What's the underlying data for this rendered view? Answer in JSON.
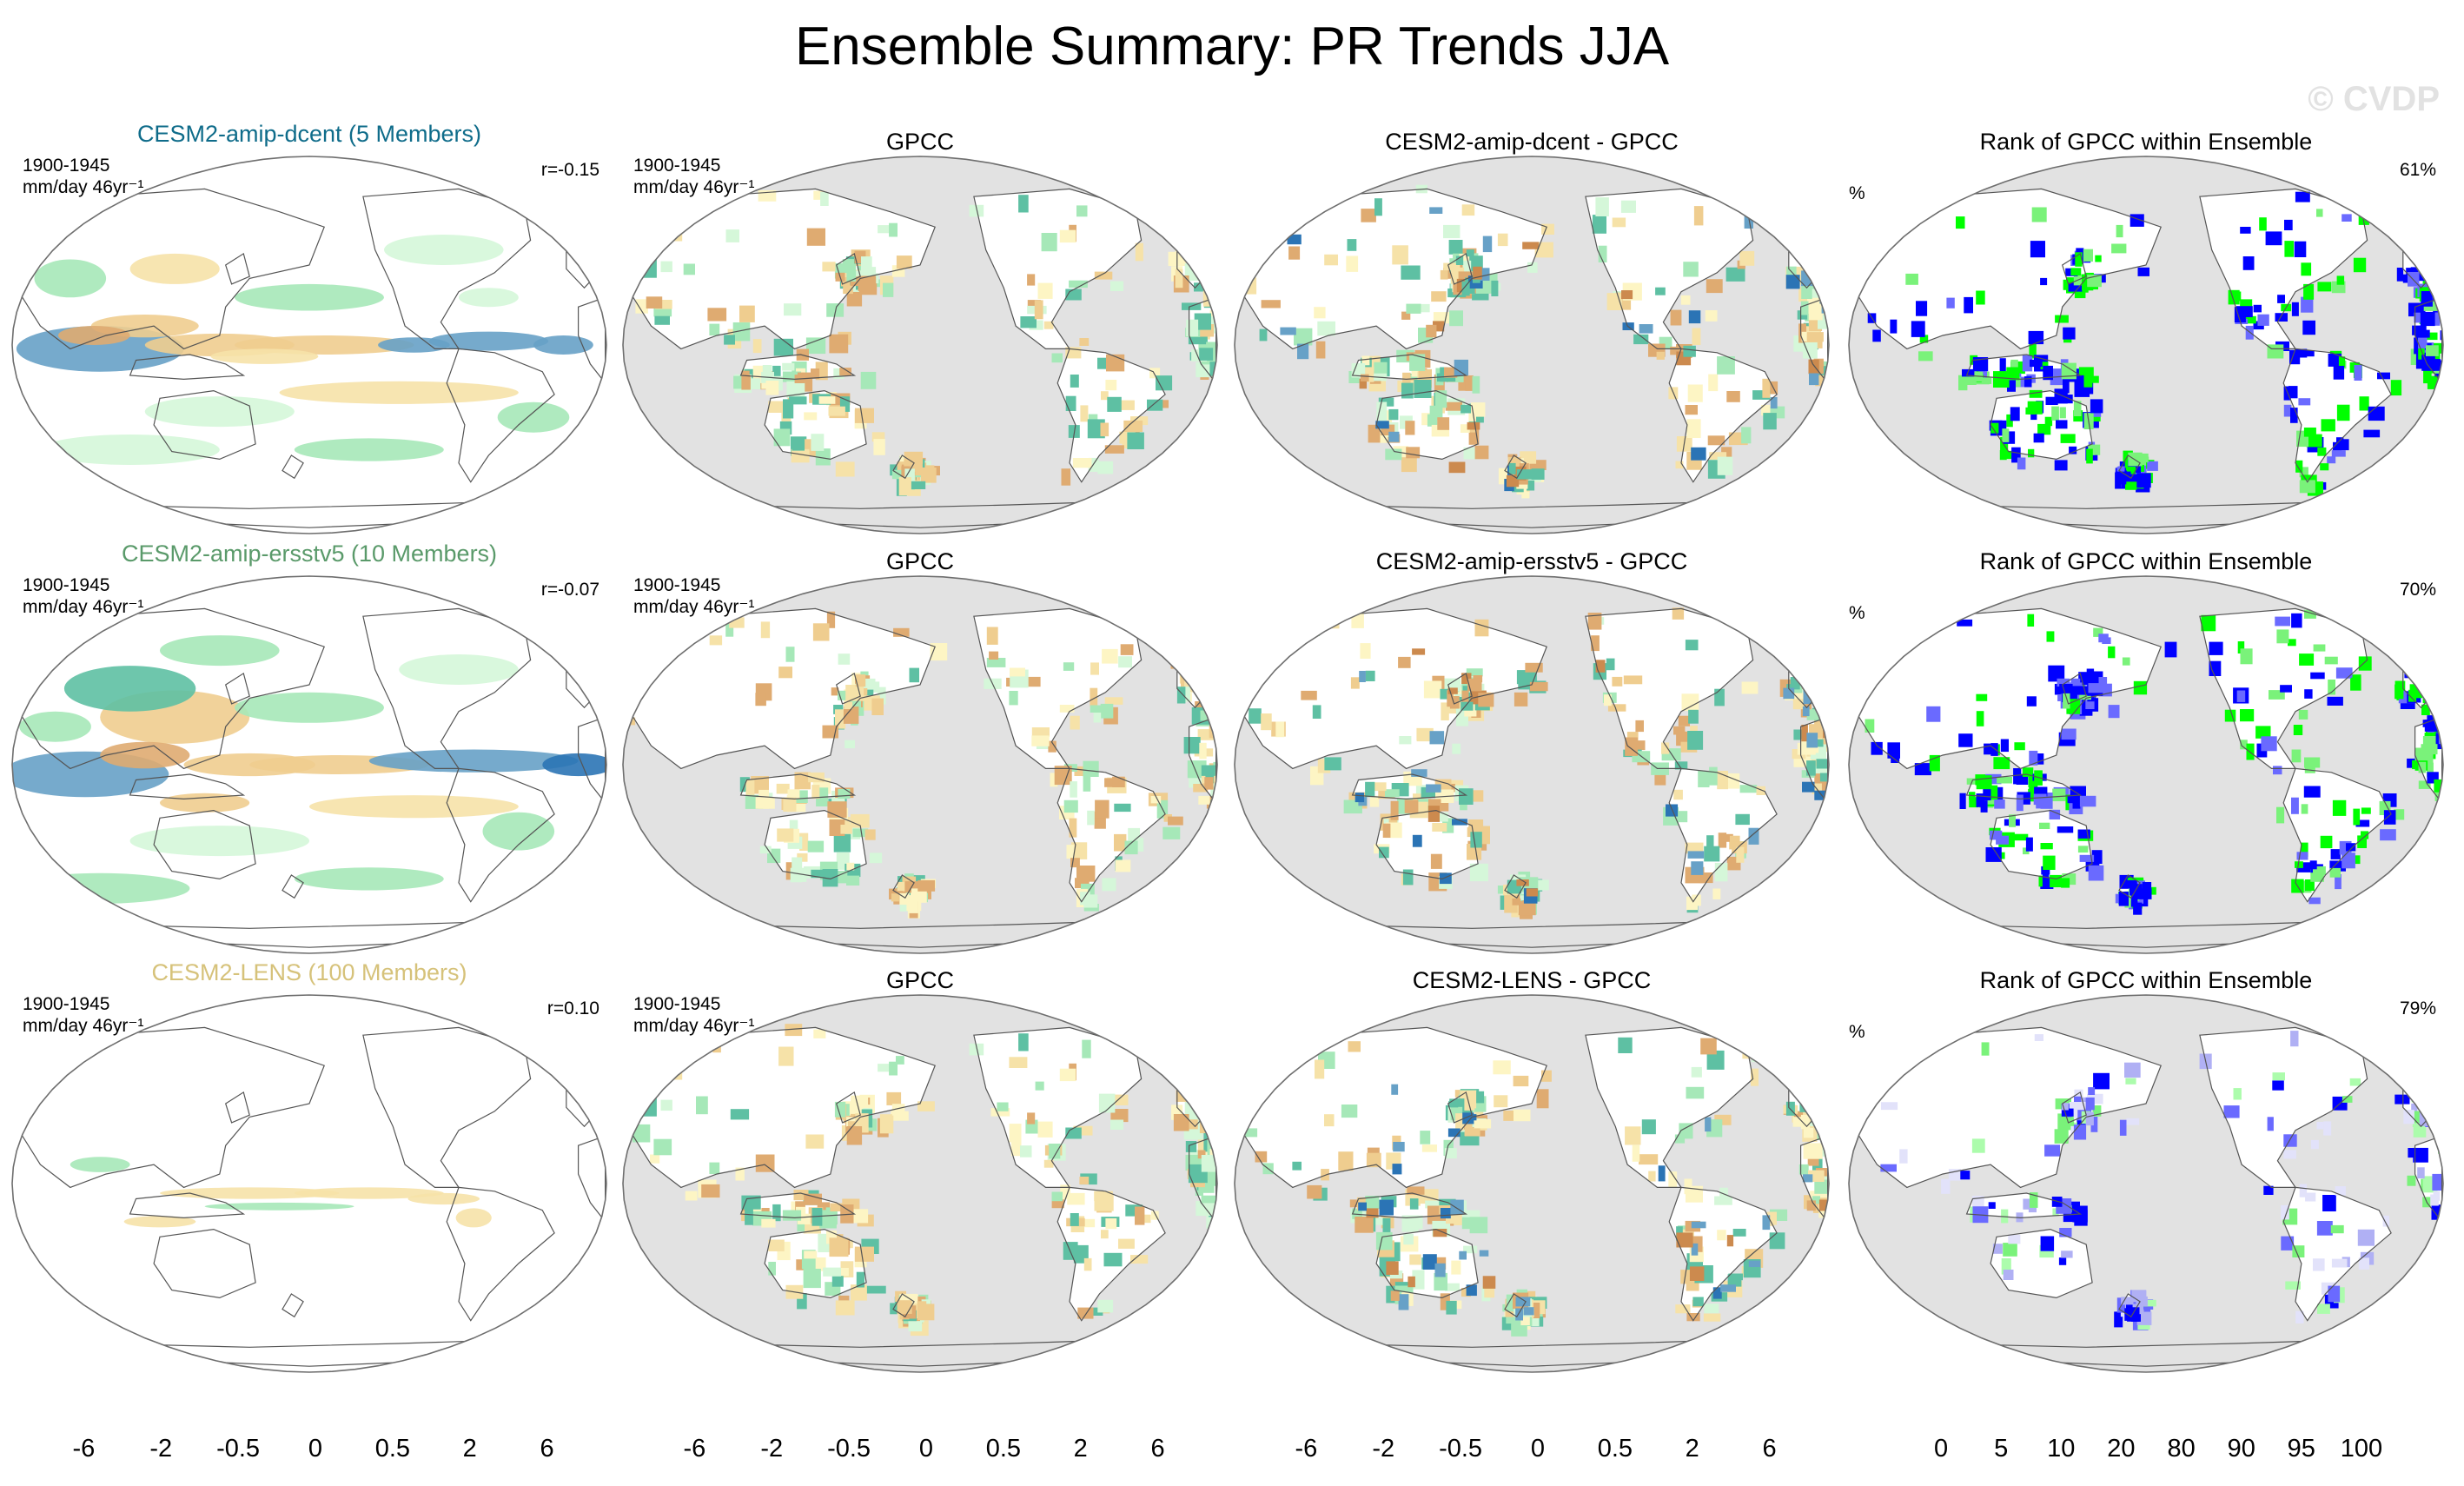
{
  "title": "Ensemble Summary: PR Trends JJA",
  "watermark": "© CVDP",
  "colors": {
    "brown_to_blue": [
      "#b5662a",
      "#cc8a4e",
      "#dfab71",
      "#efcd8f",
      "#f6e2a8",
      "#fdf5c4",
      "#ffffff",
      "#ffffff",
      "#d5f7d9",
      "#a6e8b8",
      "#5ec0a3",
      "#67a1c7",
      "#2b74b5",
      "#0e416a"
    ],
    "rank": [
      "#0000ff",
      "#6a6aff",
      "#b0b0f4",
      "#e2e2fa",
      "#ffffff",
      "#dcfcdc",
      "#acfcac",
      "#7af27a",
      "#00ff00"
    ],
    "ocean_mask": "#e2e2e2",
    "land_outline": "#555555"
  },
  "rows": [
    {
      "model": {
        "title": "CESM2-amip-dcent (5 Members)",
        "title_color": "#0f6c8a",
        "period": "1900-1945",
        "units": "mm/day 46yr⁻¹",
        "corr": "r=-0.15"
      },
      "obs": {
        "title": "GPCC",
        "period": "1900-1945",
        "units": "mm/day 46yr⁻¹"
      },
      "diff": {
        "title": "CESM2-amip-dcent - GPCC"
      },
      "rank": {
        "title": "Rank of GPCC within Ensemble",
        "unit": "%",
        "pct": "61%"
      }
    },
    {
      "model": {
        "title": "CESM2-amip-ersstv5 (10 Members)",
        "title_color": "#5a9a6a",
        "period": "1900-1945",
        "units": "mm/day 46yr⁻¹",
        "corr": "r=-0.07"
      },
      "obs": {
        "title": "GPCC",
        "period": "1900-1945",
        "units": "mm/day 46yr⁻¹"
      },
      "diff": {
        "title": "CESM2-amip-ersstv5 - GPCC"
      },
      "rank": {
        "title": "Rank of GPCC within Ensemble",
        "unit": "%",
        "pct": "70%"
      }
    },
    {
      "model": {
        "title": "CESM2-LENS (100 Members)",
        "title_color": "#d6c27a",
        "period": "1900-1945",
        "units": "mm/day 46yr⁻¹",
        "corr": "r=0.10"
      },
      "obs": {
        "title": "GPCC",
        "period": "1900-1945",
        "units": "mm/day 46yr⁻¹"
      },
      "diff": {
        "title": "CESM2-LENS - GPCC"
      },
      "rank": {
        "title": "Rank of GPCC within Ensemble",
        "unit": "%",
        "pct": "79%"
      }
    }
  ],
  "colorbars": [
    {
      "type": "diverging",
      "ticks": [
        "-6",
        "-2",
        "-0.5",
        "0",
        "0.5",
        "2",
        "6"
      ]
    },
    {
      "type": "diverging",
      "ticks": [
        "-6",
        "-2",
        "-0.5",
        "0",
        "0.5",
        "2",
        "6"
      ]
    },
    {
      "type": "diverging",
      "ticks": [
        "-6",
        "-2",
        "-0.5",
        "0",
        "0.5",
        "2",
        "6"
      ]
    },
    {
      "type": "rank",
      "ticks": [
        "0",
        "5",
        "10",
        "20",
        "80",
        "90",
        "95",
        "100"
      ]
    }
  ],
  "chart_data": {
    "type": "heatmap",
    "title": "Ensemble Summary: PR Trends JJA",
    "variable": "PR",
    "season": "JJA",
    "period": "1900-1945",
    "units": "mm/day 46yr⁻¹",
    "projection": "Robinson",
    "columns": [
      "model ensemble mean",
      "GPCC",
      "model - GPCC",
      "Rank of GPCC within Ensemble"
    ],
    "ensembles": [
      {
        "name": "CESM2-amip-dcent",
        "members": 5,
        "pattern_corr": -0.15,
        "rank_pct": 61
      },
      {
        "name": "CESM2-amip-ersstv5",
        "members": 10,
        "pattern_corr": -0.07,
        "rank_pct": 70
      },
      {
        "name": "CESM2-LENS",
        "members": 100,
        "pattern_corr": 0.1,
        "rank_pct": 79
      }
    ],
    "trend_contour_levels": [
      -6,
      -4,
      -2,
      -1,
      -0.5,
      -0.2,
      0,
      0.2,
      0.5,
      1,
      2,
      4,
      6
    ],
    "rank_levels": [
      0,
      5,
      10,
      20,
      80,
      90,
      95,
      100
    ]
  }
}
